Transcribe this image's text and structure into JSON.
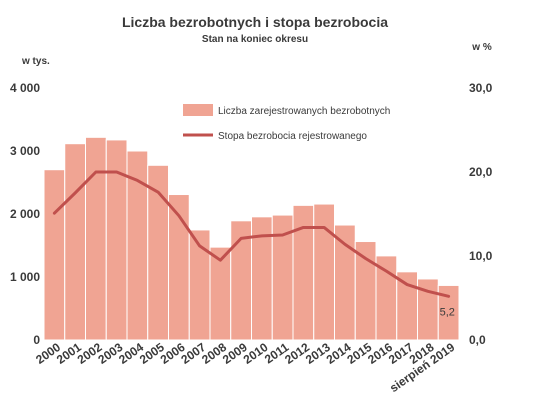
{
  "chart_data": {
    "type": "bar",
    "title": "Liczba bezrobotnych i stopa bezrobocia",
    "subtitle": "Stan na koniec okresu",
    "y_left_unit": "w tys.",
    "y_right_unit": "w %",
    "y_left_ticks": [
      "0",
      "1 000",
      "2 000",
      "3 000",
      "4 000"
    ],
    "y_right_ticks": [
      "0,0",
      "10,0",
      "20,0",
      "30,0"
    ],
    "ylim_left": [
      0,
      4000
    ],
    "ylim_right": [
      0,
      30
    ],
    "categories": [
      "2000",
      "2001",
      "2002",
      "2003",
      "2004",
      "2005",
      "2006",
      "2007",
      "2008",
      "2009",
      "2010",
      "2011",
      "2012",
      "2013",
      "2014",
      "2015",
      "2016",
      "2017",
      "2018",
      "sierpień 2019"
    ],
    "series": [
      {
        "name": "Liczba zarejestrowanych bezrobotnych",
        "type": "bar",
        "axis": "left",
        "color": "#f0a493",
        "values": [
          2703,
          3116,
          3217,
          3176,
          3000,
          2773,
          2309,
          1747,
          1474,
          1892,
          1955,
          1983,
          2137,
          2158,
          1825,
          1563,
          1335,
          1082,
          969,
          866
        ]
      },
      {
        "name": "Stopa bezrobocia rejestrowanego",
        "type": "line",
        "axis": "right",
        "color": "#c0504d",
        "values": [
          15.1,
          17.5,
          20.0,
          20.0,
          19.0,
          17.6,
          14.8,
          11.2,
          9.5,
          12.1,
          12.4,
          12.5,
          13.4,
          13.4,
          11.4,
          9.7,
          8.2,
          6.6,
          5.8,
          5.2
        ]
      }
    ],
    "annotation": "5,2",
    "legend_position": "top-right",
    "grid": false
  }
}
